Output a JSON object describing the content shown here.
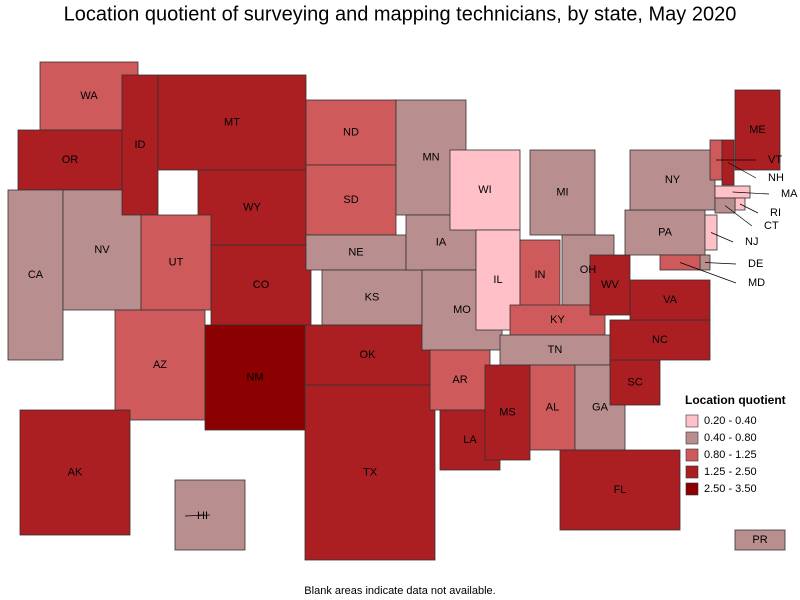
{
  "title": "Location quotient of surveying and mapping technicians, by state, May 2020",
  "legend": {
    "title": "Location quotient",
    "entries": [
      {
        "label": "0.20 - 0.40",
        "color": "#ffc0c8"
      },
      {
        "label": "0.40 - 0.80",
        "color": "#b98e8e"
      },
      {
        "label": "0.80 - 1.25",
        "color": "#cf5a5c"
      },
      {
        "label": "1.25 - 2.50",
        "color": "#ab1f23"
      },
      {
        "label": "2.50 - 3.50",
        "color": "#8b0000"
      }
    ]
  },
  "states": [
    {
      "name": "WA",
      "range": "0.80 - 1.25"
    },
    {
      "name": "OR",
      "range": "1.25 - 2.50"
    },
    {
      "name": "CA",
      "range": "0.40 - 0.80"
    },
    {
      "name": "NV",
      "range": "0.40 - 0.80"
    },
    {
      "name": "ID",
      "range": "1.25 - 2.50"
    },
    {
      "name": "MT",
      "range": "1.25 - 2.50"
    },
    {
      "name": "WY",
      "range": "1.25 - 2.50"
    },
    {
      "name": "UT",
      "range": "0.80 - 1.25"
    },
    {
      "name": "AZ",
      "range": "0.80 - 1.25"
    },
    {
      "name": "CO",
      "range": "1.25 - 2.50"
    },
    {
      "name": "NM",
      "range": "2.50 - 3.50"
    },
    {
      "name": "ND",
      "range": "0.80 - 1.25"
    },
    {
      "name": "SD",
      "range": "0.80 - 1.25"
    },
    {
      "name": "NE",
      "range": "0.40 - 0.80"
    },
    {
      "name": "KS",
      "range": "0.40 - 0.80"
    },
    {
      "name": "OK",
      "range": "1.25 - 2.50"
    },
    {
      "name": "TX",
      "range": "1.25 - 2.50"
    },
    {
      "name": "MN",
      "range": "0.40 - 0.80"
    },
    {
      "name": "IA",
      "range": "0.40 - 0.80"
    },
    {
      "name": "MO",
      "range": "0.40 - 0.80"
    },
    {
      "name": "AR",
      "range": "0.80 - 1.25"
    },
    {
      "name": "LA",
      "range": "1.25 - 2.50"
    },
    {
      "name": "WI",
      "range": "0.20 - 0.40"
    },
    {
      "name": "IL",
      "range": "0.20 - 0.40"
    },
    {
      "name": "MI",
      "range": "0.40 - 0.80"
    },
    {
      "name": "IN",
      "range": "0.80 - 1.25"
    },
    {
      "name": "OH",
      "range": "0.40 - 0.80"
    },
    {
      "name": "KY",
      "range": "0.80 - 1.25"
    },
    {
      "name": "TN",
      "range": "0.40 - 0.80"
    },
    {
      "name": "MS",
      "range": "1.25 - 2.50"
    },
    {
      "name": "AL",
      "range": "0.80 - 1.25"
    },
    {
      "name": "GA",
      "range": "0.40 - 0.80"
    },
    {
      "name": "FL",
      "range": "1.25 - 2.50"
    },
    {
      "name": "SC",
      "range": "1.25 - 2.50"
    },
    {
      "name": "NC",
      "range": "1.25 - 2.50"
    },
    {
      "name": "VA",
      "range": "1.25 - 2.50"
    },
    {
      "name": "WV",
      "range": "1.25 - 2.50"
    },
    {
      "name": "PA",
      "range": "0.40 - 0.80"
    },
    {
      "name": "NY",
      "range": "0.40 - 0.80"
    },
    {
      "name": "VT",
      "range": "0.80 - 1.25"
    },
    {
      "name": "NH",
      "range": "1.25 - 2.50"
    },
    {
      "name": "ME",
      "range": "1.25 - 2.50"
    },
    {
      "name": "MA",
      "range": "0.20 - 0.40"
    },
    {
      "name": "RI",
      "range": "0.20 - 0.40"
    },
    {
      "name": "CT",
      "range": "0.40 - 0.80"
    },
    {
      "name": "NJ",
      "range": "0.20 - 0.40"
    },
    {
      "name": "DE",
      "range": "0.40 - 0.80"
    },
    {
      "name": "MD",
      "range": "0.80 - 1.25"
    },
    {
      "name": "AK",
      "range": "1.25 - 2.50"
    },
    {
      "name": "HI",
      "range": "0.40 - 0.80"
    },
    {
      "name": "PR",
      "range": "0.40 - 0.80"
    }
  ],
  "footnote": "Blank areas indicate data not available."
}
